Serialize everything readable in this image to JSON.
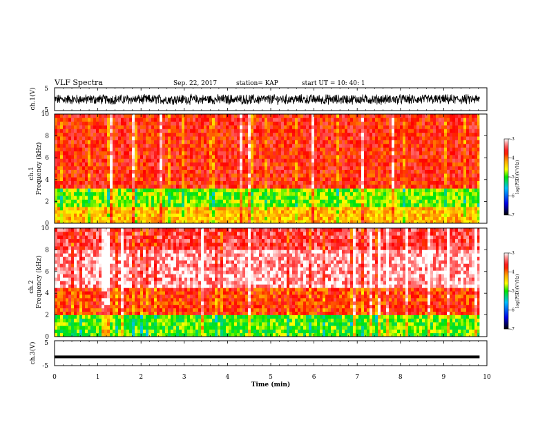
{
  "header": {
    "title": "VLF Spectra",
    "date": "Sep. 22, 2017",
    "station": "station= KAP",
    "start_ut": "start  UT =   10: 40: 1"
  },
  "chart_data": [
    {
      "type": "line",
      "panel": "ch1-waveform",
      "ylabel": "ch.1(V)",
      "ylim": [
        -5,
        5
      ],
      "yticks": [
        "5",
        "-5"
      ],
      "xlim": [
        0,
        10
      ],
      "series_color": "#000000",
      "description_values": {
        "amplitude_range_V": [
          -2.8,
          2.6
        ]
      }
    },
    {
      "type": "heatmap",
      "panel": "ch1-spectrogram",
      "ylabel_top": "ch.1",
      "ylabel": "Frequency (kHz)",
      "ylim": [
        0,
        10
      ],
      "yticks": [
        "0",
        "2",
        "4",
        "6",
        "8",
        "10"
      ],
      "xlim": [
        0,
        10
      ],
      "x_end_min": 9.83,
      "colorbar": {
        "label": "log(PSD)(V²/Hz)",
        "ticks": [
          "-3",
          "-4",
          "-5",
          "-6",
          "-7"
        ],
        "range": [
          -7,
          -3
        ]
      },
      "bands": [
        {
          "freq_kHz": [
            0,
            1.5
          ],
          "log_psd": -4.3
        },
        {
          "freq_kHz": [
            1.5,
            3.2
          ],
          "log_psd": -4.8
        },
        {
          "freq_kHz": [
            3.2,
            10
          ],
          "log_psd": -3.7
        }
      ]
    },
    {
      "type": "heatmap",
      "panel": "ch2-spectrogram",
      "ylabel_top": "ch.2",
      "ylabel": "Frequency (kHz)",
      "ylim": [
        0,
        10
      ],
      "yticks": [
        "0",
        "2",
        "4",
        "6",
        "8",
        "10"
      ],
      "xlim": [
        0,
        10
      ],
      "x_end_min": 9.83,
      "colorbar": {
        "label": "log(PSD)(V²/Hz)",
        "ticks": [
          "-3",
          "-4",
          "-5",
          "-6",
          "-7"
        ],
        "range": [
          -7,
          -3
        ]
      },
      "bands": [
        {
          "freq_kHz": [
            0,
            2
          ],
          "log_psd": -4.9
        },
        {
          "freq_kHz": [
            2,
            4.5
          ],
          "log_psd": -3.8
        },
        {
          "freq_kHz": [
            4.5,
            8
          ],
          "log_psd": -3.2
        },
        {
          "freq_kHz": [
            8,
            10
          ],
          "log_psd": -3.5
        }
      ]
    },
    {
      "type": "line",
      "panel": "ch3-waveform",
      "ylabel": "ch.3(V)",
      "ylim": [
        -5,
        5
      ],
      "yticks": [
        "5",
        "-5"
      ],
      "xlim": [
        0,
        10
      ],
      "series_color": "#000000",
      "description_values": {
        "level_V": -1.5
      }
    },
    {
      "type": "axis",
      "xlabel": "Time (min)",
      "xticks": [
        "0",
        "1",
        "2",
        "3",
        "4",
        "5",
        "6",
        "7",
        "8",
        "9",
        "10"
      ],
      "xlim": [
        0,
        10
      ]
    }
  ]
}
